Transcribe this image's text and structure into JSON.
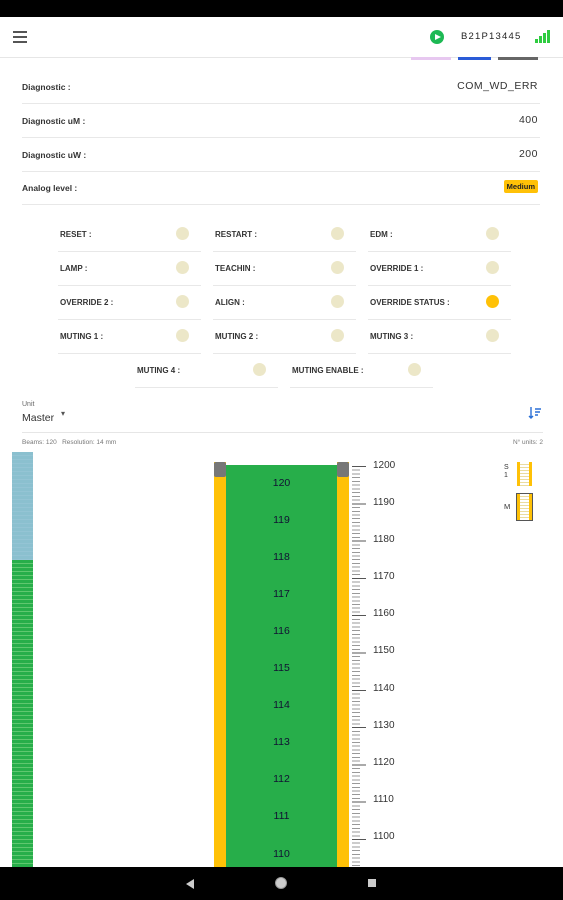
{
  "app": {
    "device_id": "B21P13445"
  },
  "colors": {
    "accent_green": "#27ae4a",
    "yellow": "#ffc107",
    "blue_strip": "#9ec3e6"
  },
  "diagnostics": [
    {
      "label": "Diagnostic :",
      "value": "COM_WD_ERR"
    },
    {
      "label": "Diagnostic uM :",
      "value": "400"
    },
    {
      "label": "Diagnostic uW :",
      "value": "200"
    }
  ],
  "analog": {
    "label": "Analog level :",
    "value": "Medium"
  },
  "io": [
    {
      "label": "RESET :",
      "on": false
    },
    {
      "label": "RESTART :",
      "on": false
    },
    {
      "label": "EDM :",
      "on": false
    },
    {
      "label": "LAMP :",
      "on": false
    },
    {
      "label": "TEACHIN :",
      "on": false
    },
    {
      "label": "OVERRIDE 1 :",
      "on": false
    },
    {
      "label": "OVERRIDE 2 :",
      "on": false
    },
    {
      "label": "ALIGN :",
      "on": false
    },
    {
      "label": "OVERRIDE STATUS :",
      "on": true
    },
    {
      "label": "MUTING 1 :",
      "on": false
    },
    {
      "label": "MUTING 2 :",
      "on": false
    },
    {
      "label": "MUTING 3 :",
      "on": false
    },
    {
      "label": "MUTING 4 :",
      "on": false
    },
    {
      "label": "MUTING ENABLE :",
      "on": false
    }
  ],
  "unit": {
    "label": "Unit",
    "selected": "Master"
  },
  "info": {
    "beams": "Beams: 120",
    "resolution": "Resolution: 14 mm",
    "units": "N° units: 2"
  },
  "beams_visible": [
    "120",
    "119",
    "118",
    "117",
    "116",
    "115",
    "114",
    "113",
    "112",
    "111",
    "110"
  ],
  "scale_labels": [
    "1200",
    "1190",
    "1180",
    "1170",
    "1160",
    "1150",
    "1140",
    "1130",
    "1120",
    "1110",
    "1100"
  ],
  "mini_units": [
    {
      "label": "S 1"
    },
    {
      "label": "M"
    }
  ],
  "icons": [
    "menu-icon",
    "play-icon",
    "signal-icon",
    "sort-icon",
    "back-icon",
    "home-icon",
    "recents-icon"
  ]
}
